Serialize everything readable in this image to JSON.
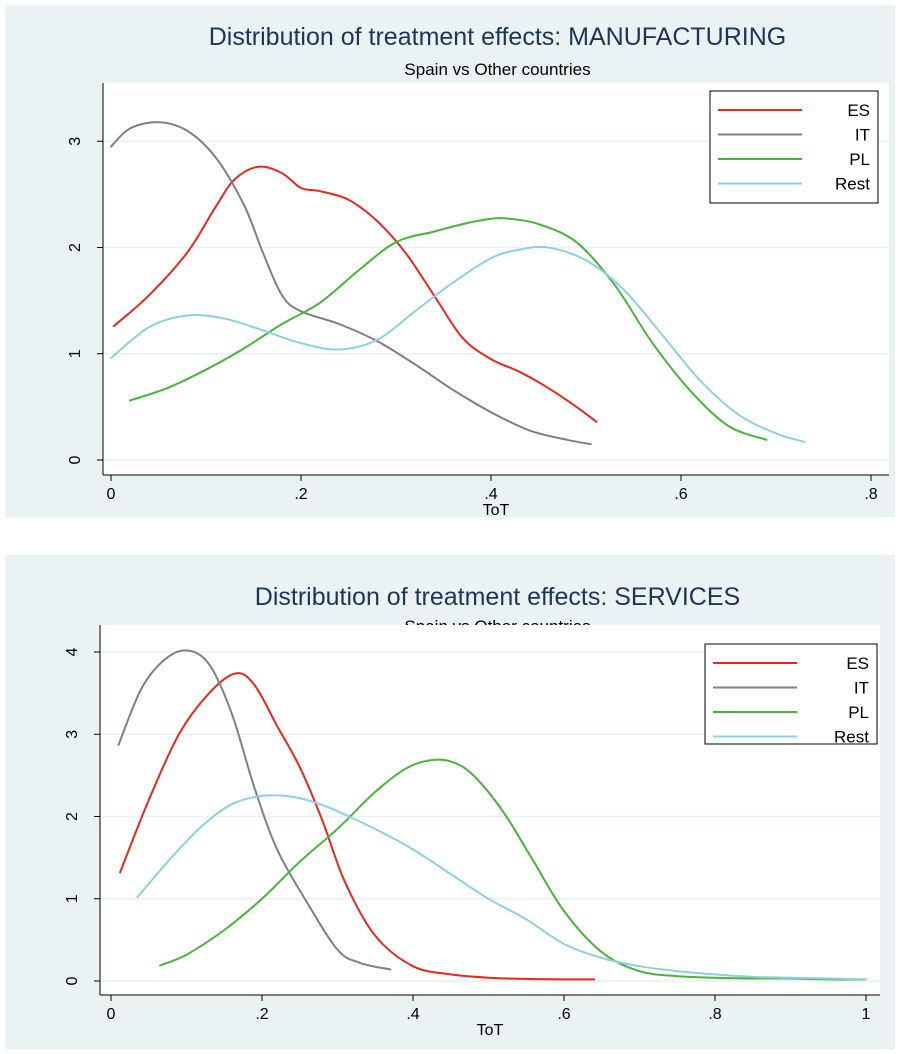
{
  "chart_data": [
    {
      "type": "line",
      "title": "Distribution of treatment effects: MANUFACTURING",
      "subtitle": "Spain vs Other countries",
      "xlabel": "ToT",
      "ylabel": "",
      "xlim": [
        0,
        0.8
      ],
      "ylim": [
        0,
        3.2
      ],
      "xticks": [
        0,
        0.2,
        0.4,
        0.6,
        0.8
      ],
      "xtick_labels": [
        "0",
        ".2",
        ".4",
        ".6",
        ".8"
      ],
      "yticks": [
        0,
        1,
        2,
        3
      ],
      "ytick_labels": [
        "0",
        "1",
        "2",
        "3"
      ],
      "grid": "horizontal",
      "legend_position": "top-right",
      "series": [
        {
          "name": "ES",
          "color": "#e8281e",
          "x": [
            0.003,
            0.04,
            0.08,
            0.11,
            0.13,
            0.155,
            0.18,
            0.2,
            0.22,
            0.25,
            0.28,
            0.31,
            0.34,
            0.37,
            0.4,
            0.43,
            0.46,
            0.49,
            0.511
          ],
          "y": [
            1.26,
            1.55,
            1.95,
            2.38,
            2.64,
            2.76,
            2.7,
            2.56,
            2.53,
            2.45,
            2.25,
            1.95,
            1.55,
            1.15,
            0.95,
            0.83,
            0.68,
            0.5,
            0.36
          ]
        },
        {
          "name": "IT",
          "color": "#808080",
          "x": [
            0.0,
            0.02,
            0.05,
            0.08,
            0.11,
            0.14,
            0.16,
            0.18,
            0.2,
            0.24,
            0.28,
            0.32,
            0.36,
            0.4,
            0.44,
            0.48,
            0.505
          ],
          "y": [
            2.95,
            3.12,
            3.18,
            3.1,
            2.85,
            2.4,
            1.95,
            1.55,
            1.4,
            1.28,
            1.12,
            0.9,
            0.66,
            0.45,
            0.28,
            0.19,
            0.15
          ]
        },
        {
          "name": "PL",
          "color": "#4bb33c",
          "x": [
            0.02,
            0.06,
            0.1,
            0.14,
            0.18,
            0.22,
            0.26,
            0.3,
            0.34,
            0.37,
            0.4,
            0.42,
            0.45,
            0.49,
            0.53,
            0.57,
            0.61,
            0.65,
            0.69
          ],
          "y": [
            0.56,
            0.68,
            0.85,
            1.05,
            1.28,
            1.48,
            1.78,
            2.05,
            2.15,
            2.22,
            2.27,
            2.27,
            2.22,
            2.05,
            1.65,
            1.1,
            0.65,
            0.32,
            0.19
          ]
        },
        {
          "name": "Rest",
          "color": "#8fcfe0",
          "x": [
            0.0,
            0.04,
            0.08,
            0.12,
            0.16,
            0.2,
            0.24,
            0.28,
            0.32,
            0.36,
            0.4,
            0.43,
            0.46,
            0.5,
            0.54,
            0.58,
            0.62,
            0.66,
            0.7,
            0.73
          ],
          "y": [
            0.96,
            1.25,
            1.36,
            1.33,
            1.22,
            1.1,
            1.04,
            1.13,
            1.4,
            1.67,
            1.9,
            1.98,
            2.0,
            1.88,
            1.6,
            1.18,
            0.75,
            0.43,
            0.25,
            0.17
          ]
        }
      ]
    },
    {
      "type": "line",
      "title": "Distribution of treatment effects: SERVICES",
      "subtitle": "Spain vs Other countries",
      "xlabel": "ToT",
      "ylabel": "",
      "xlim": [
        0,
        1
      ],
      "ylim": [
        0,
        4
      ],
      "xticks": [
        0,
        0.2,
        0.4,
        0.6,
        0.8,
        1
      ],
      "xtick_labels": [
        "0",
        ".2",
        ".4",
        ".6",
        ".8",
        "1"
      ],
      "yticks": [
        0,
        1,
        2,
        3,
        4
      ],
      "ytick_labels": [
        "0",
        "1",
        "2",
        "3",
        "4"
      ],
      "grid": "horizontal",
      "legend_position": "top-right",
      "series": [
        {
          "name": "ES",
          "color": "#e8281e",
          "x": [
            0.012,
            0.05,
            0.09,
            0.13,
            0.165,
            0.19,
            0.22,
            0.25,
            0.28,
            0.31,
            0.35,
            0.4,
            0.45,
            0.5,
            0.55,
            0.6,
            0.64
          ],
          "y": [
            1.32,
            2.2,
            3.0,
            3.5,
            3.74,
            3.6,
            3.1,
            2.6,
            1.95,
            1.2,
            0.55,
            0.18,
            0.08,
            0.04,
            0.025,
            0.02,
            0.02
          ]
        },
        {
          "name": "IT",
          "color": "#808080",
          "x": [
            0.01,
            0.04,
            0.07,
            0.1,
            0.13,
            0.16,
            0.19,
            0.22,
            0.26,
            0.3,
            0.33,
            0.37
          ],
          "y": [
            2.87,
            3.55,
            3.9,
            4.02,
            3.85,
            3.25,
            2.35,
            1.6,
            0.95,
            0.38,
            0.22,
            0.14
          ]
        },
        {
          "name": "PL",
          "color": "#4bb33c",
          "x": [
            0.065,
            0.1,
            0.15,
            0.2,
            0.25,
            0.3,
            0.35,
            0.39,
            0.42,
            0.45,
            0.48,
            0.52,
            0.56,
            0.6,
            0.65,
            0.7,
            0.75,
            0.8,
            0.85,
            0.9,
            0.95,
            1.0
          ],
          "y": [
            0.19,
            0.32,
            0.62,
            1.0,
            1.45,
            1.85,
            2.3,
            2.58,
            2.68,
            2.67,
            2.5,
            2.05,
            1.45,
            0.85,
            0.35,
            0.12,
            0.06,
            0.04,
            0.03,
            0.03,
            0.02,
            0.02
          ]
        },
        {
          "name": "Rest",
          "color": "#8fcfe0",
          "x": [
            0.035,
            0.08,
            0.12,
            0.16,
            0.2,
            0.24,
            0.28,
            0.32,
            0.36,
            0.4,
            0.45,
            0.5,
            0.55,
            0.6,
            0.65,
            0.7,
            0.75,
            0.8,
            0.85,
            0.9,
            0.95,
            1.0
          ],
          "y": [
            1.02,
            1.5,
            1.88,
            2.15,
            2.25,
            2.24,
            2.14,
            1.98,
            1.8,
            1.6,
            1.3,
            1.0,
            0.75,
            0.45,
            0.28,
            0.18,
            0.12,
            0.08,
            0.05,
            0.04,
            0.03,
            0.02
          ]
        }
      ]
    }
  ]
}
